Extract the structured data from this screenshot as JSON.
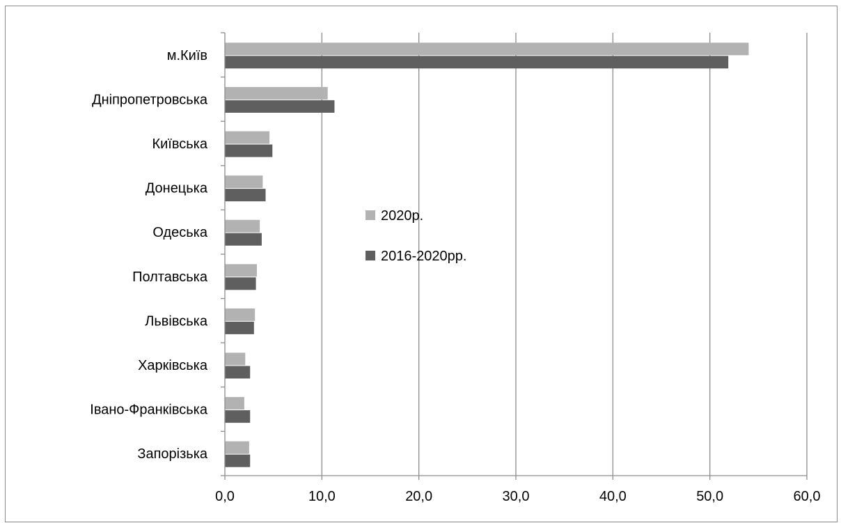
{
  "chart_data": {
    "type": "bar",
    "orientation": "horizontal",
    "categories": [
      "м.Київ",
      "Дніпропетровська",
      "Київська",
      "Донецька",
      "Одеська",
      "Полтавська",
      "Львівська",
      "Харківська",
      "Івано-Франківська",
      "Запорізька"
    ],
    "series": [
      {
        "name": "2020р.",
        "color": "#b2b2b2",
        "values": [
          54.0,
          10.6,
          4.6,
          3.9,
          3.6,
          3.3,
          3.1,
          2.1,
          2.0,
          2.5
        ]
      },
      {
        "name": "2016-2020рр.",
        "color": "#5f5f5f",
        "values": [
          51.9,
          11.3,
          4.9,
          4.2,
          3.8,
          3.2,
          3.0,
          2.6,
          2.6,
          2.6
        ]
      }
    ],
    "xlim": [
      0,
      60
    ],
    "x_ticks": [
      "0,0",
      "10,0",
      "20,0",
      "30,0",
      "40,0",
      "50,0",
      "60,0"
    ],
    "x_tick_values": [
      0,
      10,
      20,
      30,
      40,
      50,
      60
    ],
    "grid": "vertical",
    "legend_position": "center",
    "title": "",
    "xlabel": "",
    "ylabel": ""
  }
}
